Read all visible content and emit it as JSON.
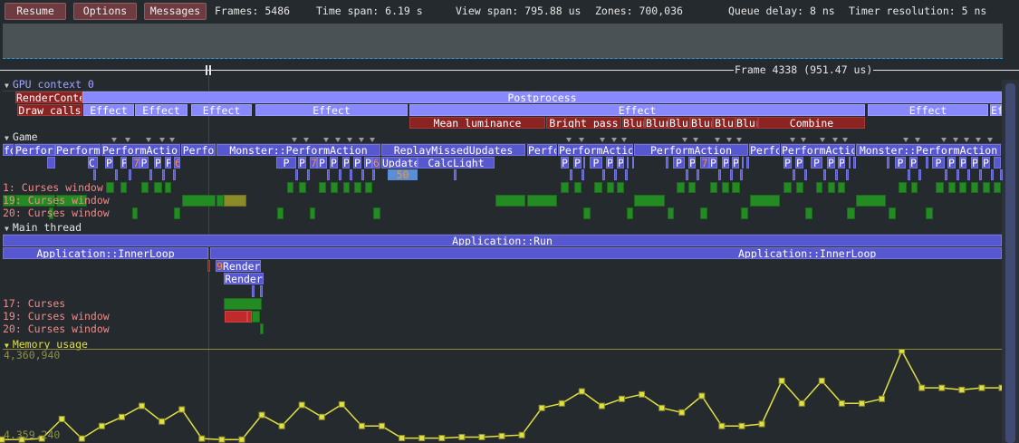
{
  "toolbar": {
    "resume": "Resume",
    "options": "Options",
    "messages": "Messages",
    "frames": "Frames: 5486",
    "time_span": "Time span: 6.19 s",
    "view_span": "View span: 795.88 us",
    "zones": "Zones: 700,036",
    "queue_delay": "Queue delay: 8 ns",
    "timer_resolution": "Timer resolution: 5 ns"
  },
  "frame_label": "Frame 4338 (951.47 us)",
  "gpu": {
    "header": "GPU context 0",
    "render_context": "RenderConte",
    "draw_calls": "Draw calls",
    "postprocess": "Postprocess",
    "effects": [
      "Effect",
      "Effect",
      "Effect",
      "Effect",
      "Effect",
      "Effect",
      "Ef"
    ],
    "passes": [
      "Mean luminance",
      "Bright pass",
      "Blur",
      "Blur",
      "Blur",
      "Blur",
      "Blu",
      "Blur",
      "Combine"
    ]
  },
  "game": {
    "header": "Game",
    "row1": [
      "fo",
      "Perforr",
      "Perform",
      "PerformActior",
      "Perfo",
      "Monster::PerformAction",
      "ReplayMissedUpdates",
      "Perfc",
      "PerformActio",
      "PerformAction",
      "Perfc",
      "PerformActic",
      "Monster::PerformAction"
    ],
    "row2": [
      "C(",
      "P",
      "P",
      "7",
      "P",
      "P",
      "P",
      "6",
      "P",
      "P",
      "7",
      "P",
      "P",
      "P",
      "P",
      "P",
      "6",
      "Update",
      "CalcLight",
      "P",
      "P",
      "P",
      "P",
      "P",
      "P",
      "P",
      "7",
      "P",
      "P",
      "P",
      "P",
      "P",
      "P",
      "P",
      "P",
      "P",
      "P",
      "P",
      "P",
      "P",
      "P",
      "P"
    ],
    "count_badge": "50",
    "threads": [
      "1: Curses window",
      "19: Curses window",
      "20: Curses window"
    ]
  },
  "main_thread": {
    "header": "Main thread",
    "run": "Application::Run",
    "inner_loop": "Application::InnerLoop",
    "render_count": "9",
    "render": "Render",
    "render_child": "Render",
    "threads": [
      "17: Curses",
      "19: Curses window",
      "20: Curses window"
    ]
  },
  "memory": {
    "header": "Memory usage",
    "max_label": "4,360,940",
    "min_label": "4,359,240",
    "color": "#e0e040",
    "ylim": [
      4359100,
      4360940
    ],
    "values": [
      4359150,
      4359150,
      4359170,
      4359560,
      4359170,
      4359420,
      4359600,
      4359820,
      4359510,
      4359750,
      4359170,
      4359150,
      4359150,
      4359640,
      4359420,
      4359840,
      4359600,
      4359850,
      4359420,
      4359420,
      4359180,
      4359180,
      4359180,
      4359200,
      4359200,
      4359220,
      4359240,
      4359780,
      4359870,
      4360110,
      4359820,
      4359960,
      4360050,
      4359780,
      4359690,
      4360020,
      4359420,
      4359420,
      4359460,
      4360320,
      4359870,
      4360320,
      4359870,
      4359870,
      4359960,
      4360920,
      4360180,
      4360180,
      4360140,
      4360180,
      4360180
    ]
  },
  "colors": {
    "background": "#242a2e",
    "cpu_zone": "#5757cf",
    "gpu_zone": "#8888ff",
    "gpu_pass": "#8b2323",
    "thread_zone": "#248a24",
    "button": "#6e3c40"
  }
}
